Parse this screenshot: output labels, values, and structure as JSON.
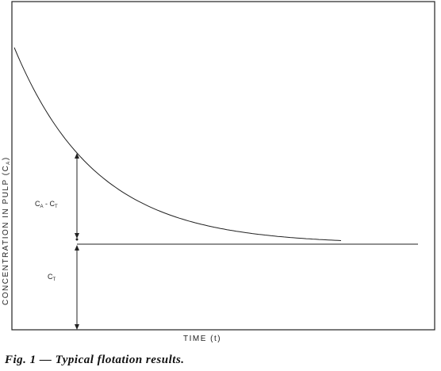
{
  "figure": {
    "y_axis_label": {
      "main": "CONCENTRATION IN PULP (C",
      "sub": "A",
      "close": ")"
    },
    "x_axis_label": "TIME (t)",
    "difference_label": {
      "c1": "C",
      "sub1": "A",
      "dash": " - ",
      "c2": "C",
      "sub2": "T"
    },
    "residual_label": {
      "c": "C",
      "sub": "T"
    },
    "caption": "Fig. 1 — Typical flotation results."
  }
}
